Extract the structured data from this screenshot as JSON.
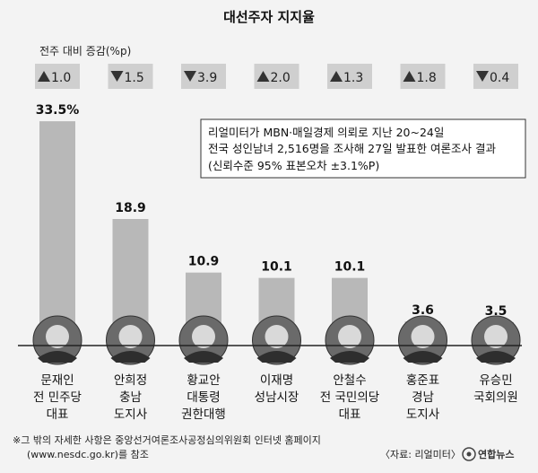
{
  "chart_data": {
    "type": "bar",
    "title": "대선주자 지지율",
    "change_label": "전주 대비 증감(%p)",
    "candidates": [
      {
        "name": "문재인",
        "roles": [
          "전 민주당",
          "대표"
        ],
        "value": 33.5,
        "value_label": "33.5%",
        "change": "1.0",
        "direction": "up"
      },
      {
        "name": "안희정",
        "roles": [
          "충남",
          "도지사"
        ],
        "value": 18.9,
        "value_label": "18.9",
        "change": "1.5",
        "direction": "down"
      },
      {
        "name": "황교안",
        "roles": [
          "대통령",
          "권한대행"
        ],
        "value": 10.9,
        "value_label": "10.9",
        "change": "3.9",
        "direction": "down"
      },
      {
        "name": "이재명",
        "roles": [
          "성남시장"
        ],
        "value": 10.1,
        "value_label": "10.1",
        "change": "2.0",
        "direction": "up"
      },
      {
        "name": "안철수",
        "roles": [
          "전 국민의당",
          "대표"
        ],
        "value": 10.1,
        "value_label": "10.1",
        "change": "1.3",
        "direction": "up"
      },
      {
        "name": "홍준표",
        "roles": [
          "경남",
          "도지사"
        ],
        "value": 3.6,
        "value_label": "3.6",
        "change": "1.8",
        "direction": "up"
      },
      {
        "name": "유승민",
        "roles": [
          "국회의원"
        ],
        "value": 3.5,
        "value_label": "3.5",
        "change": "0.4",
        "direction": "down"
      }
    ],
    "note_lines": [
      "리얼미터가 MBN·매일경제 의뢰로 지난 20~24일",
      "전국 성인남녀 2,516명을 조사해 27일 발표한 여론조사 결과",
      "(신뢰수준 95%  표본오차 ±3.1%P)"
    ],
    "footnote_lines": [
      "※그 밖의 자세한 사항은 중앙선거여론조사공정심의위원회 인터넷 홈페이지",
      "(www.nesdc.go.kr)를 참조"
    ],
    "source": "〈자료: 리얼미터〉",
    "logo": "연합뉴스",
    "colors": {
      "bar": "#b8b8b8",
      "background": "#f3f3f3",
      "badge": "#cfcfcf",
      "frame": "#333333"
    }
  }
}
